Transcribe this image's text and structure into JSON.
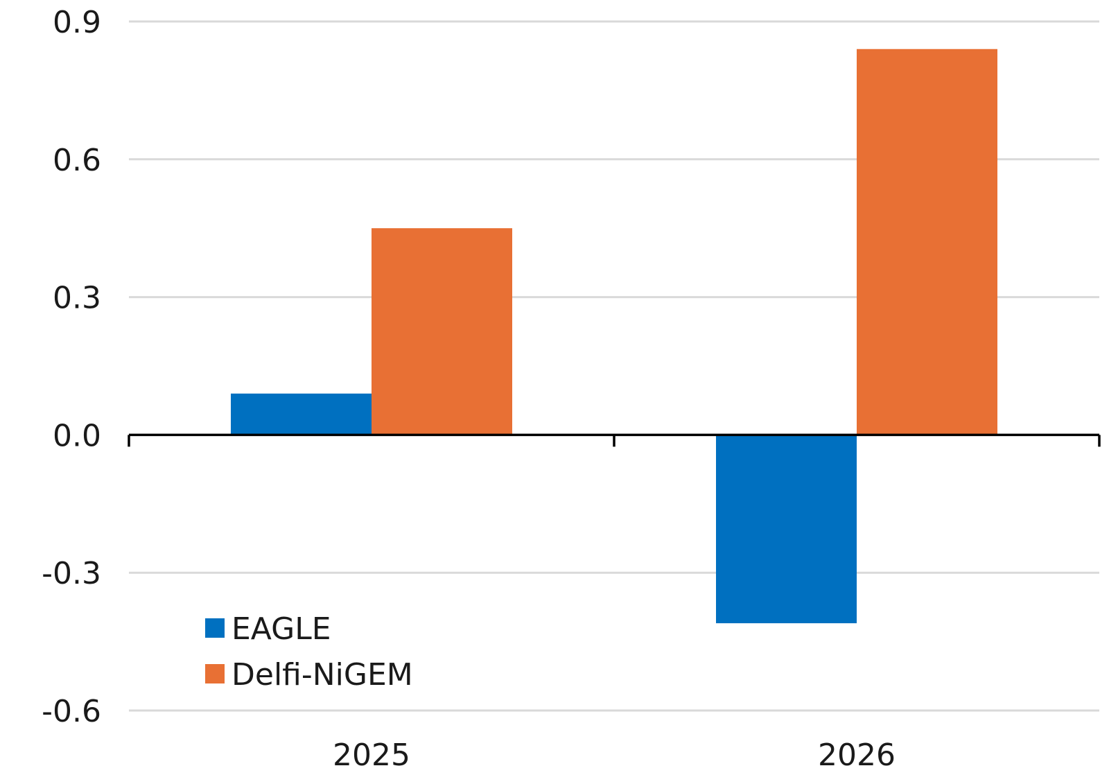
{
  "chart_data": {
    "type": "bar",
    "title": "",
    "xlabel": "",
    "ylabel": "",
    "categories": [
      "2025",
      "2026"
    ],
    "series": [
      {
        "name": "EAGLE",
        "values": [
          0.09,
          -0.41
        ],
        "color": "#0070c0"
      },
      {
        "name": "Delfi-NiGEM",
        "values": [
          0.45,
          0.84
        ],
        "color": "#e87034"
      }
    ],
    "ylim": [
      -0.6,
      0.9
    ],
    "yticks": [
      -0.6,
      -0.3,
      0.0,
      0.3,
      0.6,
      0.9
    ],
    "ytick_labels": [
      "-0.6",
      "-0.3",
      "0.0",
      "0.3",
      "0.6",
      "0.9"
    ],
    "grid": true,
    "legend_position": "bottom-left"
  }
}
